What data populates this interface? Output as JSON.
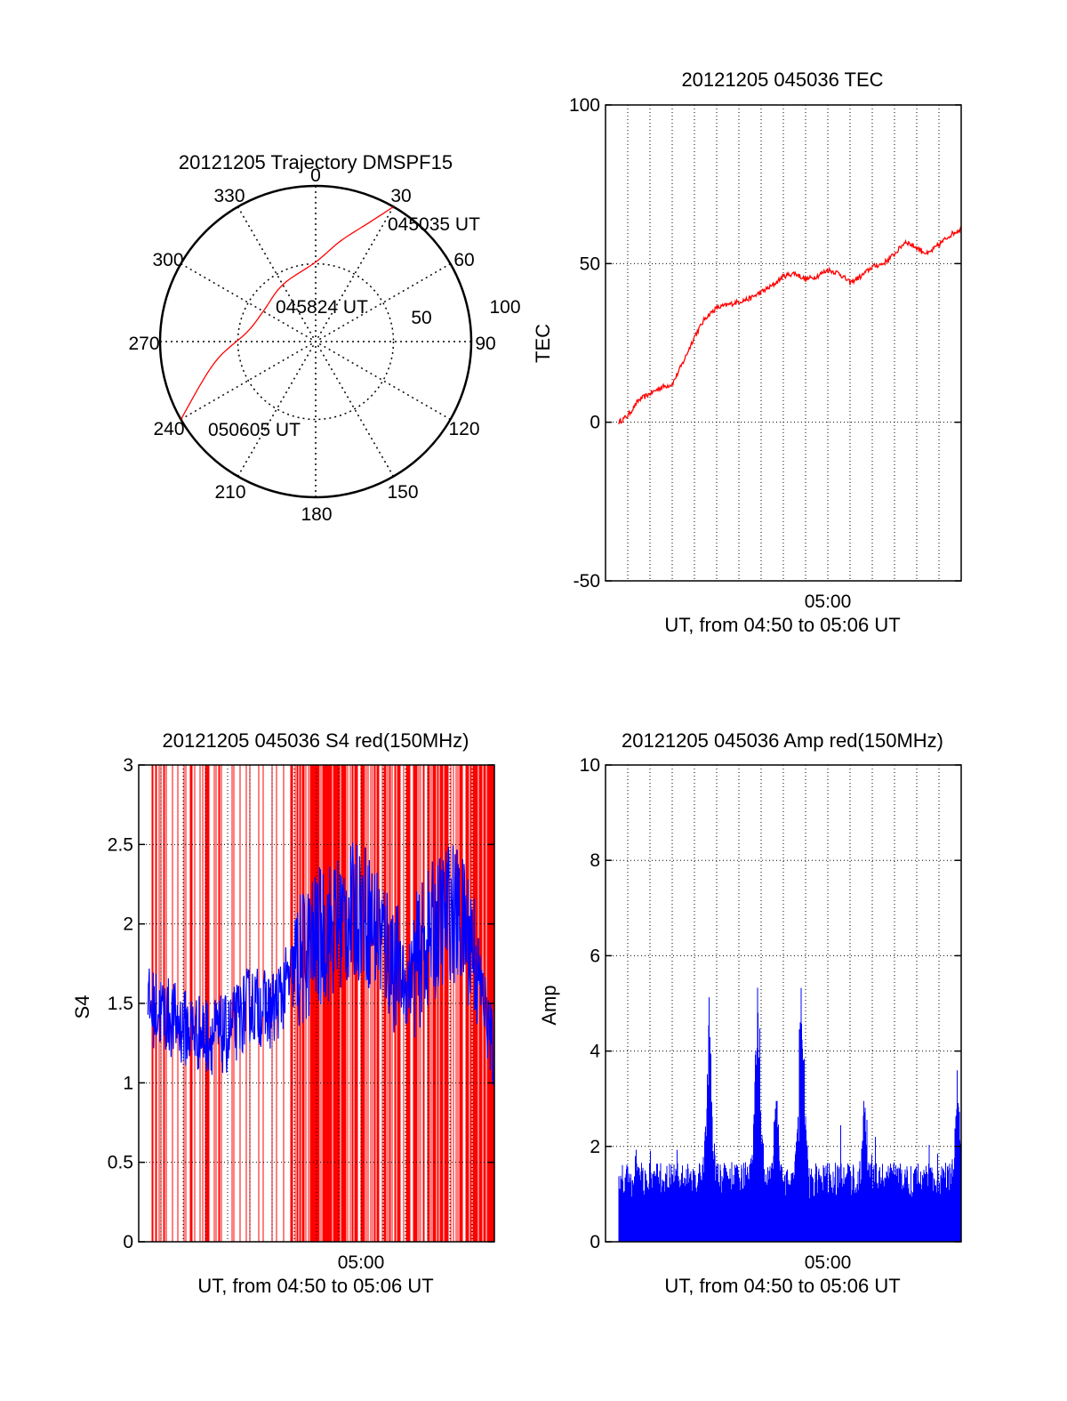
{
  "colors": {
    "tec_line": "#ff0000",
    "trajectory": "#ff0000",
    "s4_red": "#ff0000",
    "s4_blue": "#0000ff",
    "amp": "#0000ff",
    "axis": "#000000",
    "grid": "#000000"
  },
  "chart_data": [
    {
      "id": "trajectory",
      "type": "scatter",
      "title": "20121205 Trajectory DMSPF15",
      "projection": "polar",
      "angle_labels": [
        "0",
        "30",
        "60",
        "90",
        "120",
        "150",
        "180",
        "210",
        "240",
        "270",
        "300",
        "330"
      ],
      "radial_labels": [
        "50",
        "100"
      ],
      "rlim": [
        0,
        100
      ],
      "grid": true,
      "series": [
        {
          "points": [
            {
              "az": 30,
              "el": 0
            },
            {
              "az": 24,
              "el": 15
            },
            {
              "az": 14,
              "el": 30
            },
            {
              "az": 0,
              "el": 44
            },
            {
              "az": 330,
              "el": 52
            },
            {
              "az": 300,
              "el": 55
            },
            {
              "az": 278,
              "el": 50
            },
            {
              "az": 258,
              "el": 30
            },
            {
              "az": 240,
              "el": 0
            }
          ]
        }
      ],
      "annotations": [
        {
          "text": "045035 UT",
          "az": 30,
          "el": 0
        },
        {
          "text": "045824 UT",
          "az": 0,
          "el": 44
        },
        {
          "text": "050605 UT",
          "az": 240,
          "el": 0
        }
      ]
    },
    {
      "id": "tec",
      "type": "line",
      "title": "20121205 045036 TEC",
      "ylabel": "TEC",
      "xlabel": "UT, from 04:50 to 05:06 UT",
      "x_tick_labels": [
        "05:00"
      ],
      "xlim": [
        "04:49:00",
        "05:05:00"
      ],
      "ylim": [
        -50,
        100
      ],
      "y_ticks": [
        -50,
        0,
        50,
        100
      ],
      "grid": true,
      "series": [
        {
          "x": [
            "04:49:36",
            "04:50:00",
            "04:50:30",
            "04:51:00",
            "04:51:30",
            "04:52:00",
            "04:52:30",
            "04:53:00",
            "04:53:30",
            "04:54:00",
            "04:54:30",
            "04:55:00",
            "04:55:30",
            "04:56:00",
            "04:56:30",
            "04:57:00",
            "04:57:30",
            "04:58:00",
            "04:58:30",
            "04:59:00",
            "04:59:30",
            "05:00:00",
            "05:00:30",
            "05:01:00",
            "05:01:30",
            "05:02:00",
            "05:02:30",
            "05:03:00",
            "05:03:30",
            "05:04:00",
            "05:04:30",
            "05:05:00"
          ],
          "y": [
            0,
            2,
            7,
            9,
            11,
            12,
            19,
            27,
            33,
            36,
            37,
            38,
            39,
            41,
            43,
            46,
            47,
            45,
            46,
            48,
            47,
            44,
            46,
            49,
            50,
            53,
            57,
            55,
            53,
            56,
            59,
            61
          ]
        }
      ]
    },
    {
      "id": "s4",
      "type": "line",
      "title": "20121205 045036 S4 red(150MHz)",
      "ylabel": "S4",
      "xlabel": "UT, from 04:50 to 05:06 UT",
      "x_tick_labels": [
        "05:00"
      ],
      "xlim": [
        "04:49:00",
        "05:05:00"
      ],
      "ylim": [
        0,
        3
      ],
      "y_ticks": [
        0,
        0.5,
        1,
        1.5,
        2,
        2.5,
        3
      ],
      "grid": true,
      "series": [
        {
          "x": [
            "04:49:00",
            "04:50:00",
            "04:51:00",
            "04:52:00",
            "04:53:00",
            "04:54:00",
            "04:55:00",
            "04:56:00",
            "04:57:00",
            "04:58:00",
            "04:59:00",
            "05:00:00",
            "05:01:00",
            "05:02:00",
            "05:03:00",
            "05:04:00",
            "05:05:00"
          ],
          "y": [
            1.5,
            1.45,
            1.35,
            1.3,
            1.3,
            1.5,
            1.45,
            1.7,
            1.9,
            2.0,
            2.1,
            1.9,
            1.6,
            1.9,
            2.1,
            1.9,
            1.15
          ]
        }
      ]
    },
    {
      "id": "amp",
      "type": "bar",
      "title": "20121205 045036 Amp red(150MHz)",
      "ylabel": "Amp",
      "xlabel": "UT, from 04:50 to 05:06 UT",
      "x_tick_labels": [
        "05:00"
      ],
      "xlim": [
        "04:49:00",
        "05:05:00"
      ],
      "ylim": [
        0,
        10
      ],
      "y_ticks": [
        0,
        2,
        4,
        6,
        8,
        10
      ],
      "grid": true,
      "baseline": 1.1,
      "peaks": [
        {
          "x": "04:53:40",
          "y": 5.3
        },
        {
          "x": "04:55:50",
          "y": 5.7
        },
        {
          "x": "04:57:50",
          "y": 5.7
        },
        {
          "x": "04:56:40",
          "y": 3.6
        },
        {
          "x": "05:00:40",
          "y": 3.5
        },
        {
          "x": "05:04:50",
          "y": 3.8
        }
      ]
    }
  ]
}
